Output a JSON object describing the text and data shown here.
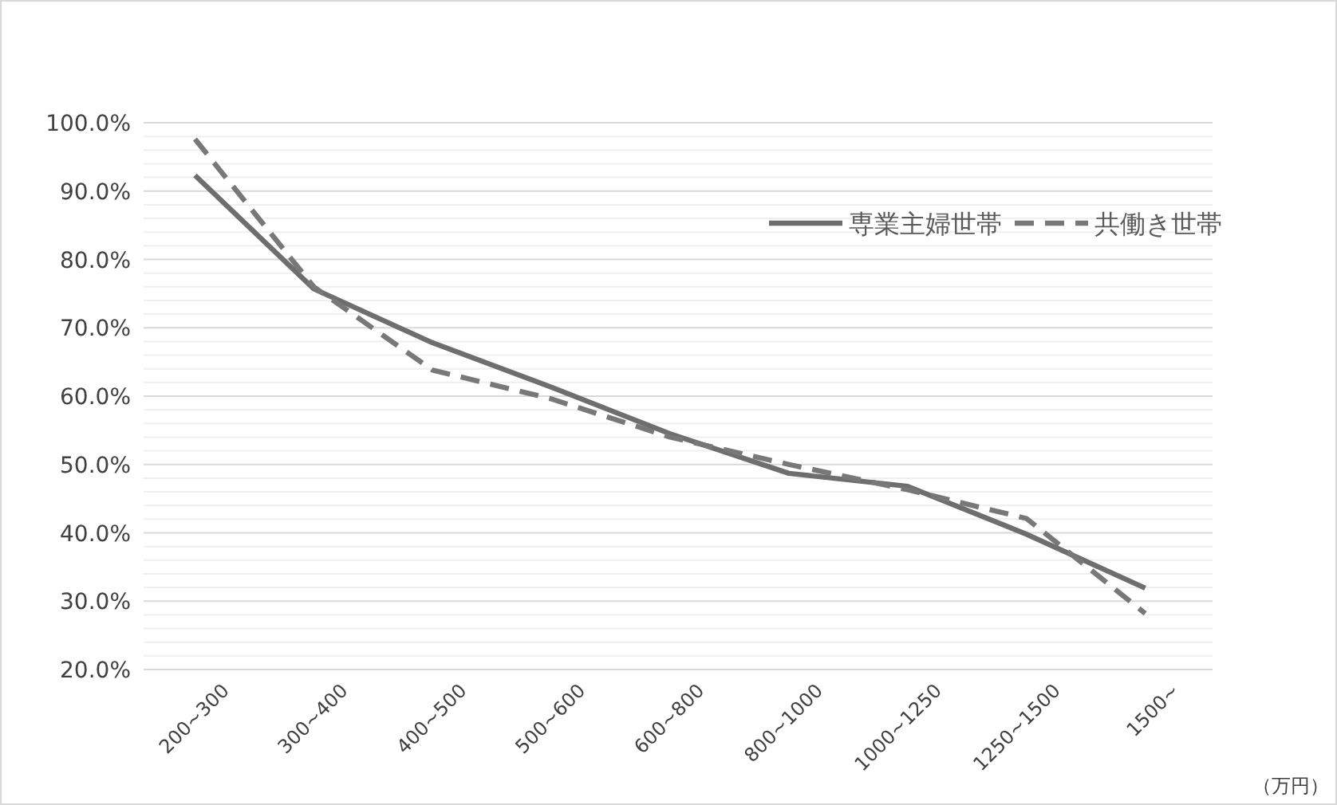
{
  "chart_data": {
    "type": "line",
    "categories": [
      "200~300",
      "300~400",
      "400~500",
      "500~600",
      "600~800",
      "800~1000",
      "1000~1250",
      "1250~1500",
      "1500~"
    ],
    "xlabel": "（万円）",
    "series": [
      {
        "name": "専業主婦世帯",
        "color": "#6e6e6e",
        "line_style": "solid",
        "values": [
          92.3,
          75.7,
          67.8,
          61.3,
          54.5,
          48.7,
          46.8,
          39.8,
          31.9
        ]
      },
      {
        "name": "共働き世帯",
        "color": "#787878",
        "line_style": "dashed",
        "values": [
          97.6,
          76.0,
          63.8,
          59.6,
          54.0,
          50.0,
          46.3,
          42.1,
          28.2
        ]
      }
    ],
    "ylim": [
      20,
      100
    ],
    "yticks": [
      {
        "value": 20,
        "label": "20.0%"
      },
      {
        "value": 22,
        "label": null
      },
      {
        "value": 24,
        "label": null
      },
      {
        "value": 26,
        "label": null
      },
      {
        "value": 28,
        "label": null
      },
      {
        "value": 30,
        "label": "30.0%"
      },
      {
        "value": 32,
        "label": null
      },
      {
        "value": 34,
        "label": null
      },
      {
        "value": 36,
        "label": null
      },
      {
        "value": 38,
        "label": null
      },
      {
        "value": 40,
        "label": "40.0%"
      },
      {
        "value": 42,
        "label": null
      },
      {
        "value": 44,
        "label": null
      },
      {
        "value": 46,
        "label": null
      },
      {
        "value": 48,
        "label": null
      },
      {
        "value": 50,
        "label": "50.0%"
      },
      {
        "value": 52,
        "label": null
      },
      {
        "value": 54,
        "label": null
      },
      {
        "value": 56,
        "label": null
      },
      {
        "value": 58,
        "label": null
      },
      {
        "value": 60,
        "label": "60.0%"
      },
      {
        "value": 62,
        "label": null
      },
      {
        "value": 64,
        "label": null
      },
      {
        "value": 66,
        "label": null
      },
      {
        "value": 68,
        "label": null
      },
      {
        "value": 70,
        "label": "70.0%"
      },
      {
        "value": 72,
        "label": null
      },
      {
        "value": 74,
        "label": null
      },
      {
        "value": 76,
        "label": null
      },
      {
        "value": 78,
        "label": null
      },
      {
        "value": 80,
        "label": "80.0%"
      },
      {
        "value": 82,
        "label": null
      },
      {
        "value": 84,
        "label": null
      },
      {
        "value": 86,
        "label": null
      },
      {
        "value": 88,
        "label": null
      },
      {
        "value": 90,
        "label": "90.0%"
      },
      {
        "value": 92,
        "label": null
      },
      {
        "value": 94,
        "label": null
      },
      {
        "value": 96,
        "label": null
      },
      {
        "value": 98,
        "label": null
      },
      {
        "value": 100,
        "label": "100.0%"
      }
    ],
    "grid": "y",
    "legend": "top right",
    "marker": "none"
  }
}
